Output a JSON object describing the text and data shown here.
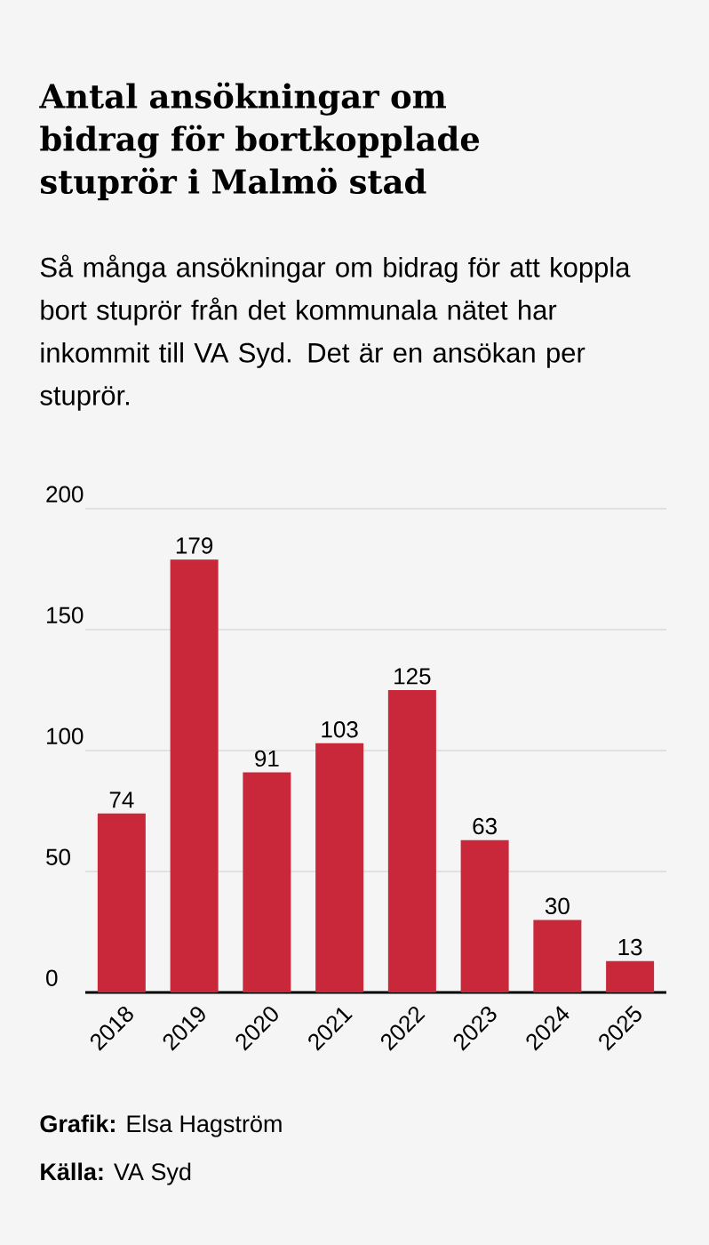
{
  "chart_data": {
    "type": "bar",
    "title": "Antal ansökningar om bidrag för bortkopplade stuprör i Malmö stad",
    "subtitle": "Så många ansökningar om bidrag för att koppla bort stuprör från det kommunala nätet har inkommit till VA Syd. Det är en ansökan per stuprör.",
    "categories": [
      "2018",
      "2019",
      "2020",
      "2021",
      "2022",
      "2023",
      "2024",
      "2025"
    ],
    "values": [
      74,
      179,
      91,
      103,
      125,
      63,
      30,
      13
    ],
    "color": "#c8283a",
    "ylim": [
      0,
      200
    ],
    "yticks": [
      0,
      50,
      100,
      150,
      200
    ],
    "grid": "y",
    "data_labels": true,
    "annotations": [
      "**Grafik:** Elsa Hagström",
      "**Källa:** VA Syd"
    ]
  }
}
